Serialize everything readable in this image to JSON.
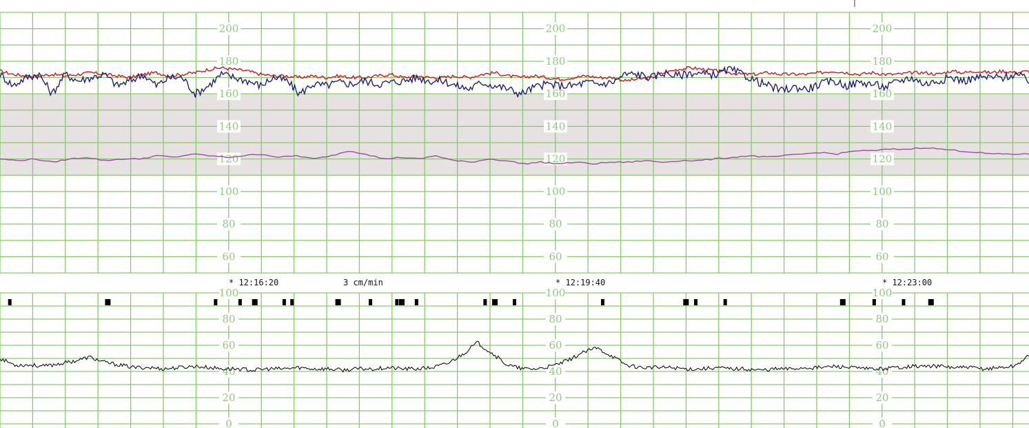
{
  "palette": {
    "grid": "#86c96a",
    "band": "#e6e2e1",
    "axis_label": "#8cc97a",
    "fhr_blue": "#1e1e78",
    "fhr_red": "#d21414",
    "maternal_purple": "#a04aa8",
    "uterine_black": "#111111"
  },
  "chart_data": [
    {
      "name_key": "fhr_panel",
      "type": "line",
      "title": "",
      "ylim": [
        50,
        210
      ],
      "y_ticks": [
        60,
        80,
        100,
        120,
        140,
        160,
        180,
        200
      ],
      "normal_band": [
        110,
        160
      ],
      "grid": true,
      "duration_min": 10.5,
      "series": [
        {
          "color_key": "fhr_red",
          "values": [
            174,
            172,
            171,
            171,
            172,
            171,
            172,
            173,
            172,
            171,
            170,
            172,
            173,
            171,
            172,
            173,
            175,
            176,
            175,
            174,
            172,
            171,
            171,
            170,
            171,
            170,
            171,
            170,
            170,
            171,
            172,
            170,
            171,
            170,
            170,
            171,
            170,
            172,
            173,
            171,
            170,
            171,
            170,
            169,
            170,
            171,
            170,
            170,
            168,
            169,
            170,
            173,
            175,
            176,
            175,
            174,
            173,
            172,
            172,
            173,
            172,
            172,
            172,
            173,
            174,
            173,
            172,
            173,
            172,
            172,
            173,
            173,
            172,
            174,
            173,
            174,
            173,
            174,
            173,
            174
          ]
        },
        {
          "color_key": "fhr_blue",
          "values": [
            172,
            165,
            170,
            172,
            160,
            172,
            168,
            170,
            172,
            165,
            168,
            172,
            165,
            170,
            170,
            160,
            165,
            172,
            170,
            168,
            165,
            170,
            168,
            160,
            166,
            165,
            167,
            166,
            168,
            166,
            167,
            168,
            170,
            168,
            168,
            165,
            163,
            167,
            165,
            163,
            160,
            164,
            166,
            165,
            165,
            167,
            166,
            167,
            172,
            172,
            170,
            173,
            171,
            173,
            172,
            172,
            175,
            172,
            168,
            165,
            162,
            164,
            163,
            166,
            168,
            165,
            167,
            166,
            164,
            168,
            170,
            166,
            168,
            170,
            168,
            170,
            170,
            170,
            172,
            168
          ]
        },
        {
          "color_key": "maternal_purple",
          "values": [
            120,
            119,
            120,
            118,
            120,
            121,
            119,
            120,
            120,
            122,
            121,
            123,
            122,
            121,
            122,
            123,
            121,
            122,
            120,
            122,
            125,
            123,
            120,
            121,
            120,
            122,
            119,
            118,
            120,
            119,
            117,
            118,
            117,
            118,
            117,
            118,
            118,
            119,
            118,
            119,
            119,
            120,
            121,
            122,
            121,
            122,
            123,
            124,
            123,
            125,
            125,
            126,
            126,
            127,
            126,
            125,
            124,
            123,
            123,
            123
          ]
        }
      ]
    },
    {
      "name_key": "uc_panel",
      "type": "line",
      "title": "",
      "ylim": [
        0,
        100
      ],
      "y_ticks": [
        0,
        20,
        40,
        60,
        80,
        100
      ],
      "grid": true,
      "duration_min": 10.5,
      "series": [
        {
          "color_key": "uterine_black",
          "values": [
            50,
            45,
            45,
            44,
            46,
            48,
            51,
            47,
            45,
            43,
            43,
            42,
            43,
            44,
            43,
            42,
            42,
            41,
            42,
            42,
            43,
            42,
            42,
            41,
            42,
            42,
            43,
            42,
            42,
            43,
            46,
            53,
            62,
            54,
            45,
            42,
            42,
            44,
            48,
            54,
            58,
            52,
            45,
            43,
            43,
            43,
            42,
            42,
            43,
            42,
            42,
            41,
            42,
            42,
            43,
            43,
            44,
            43,
            42,
            42,
            43,
            44,
            44,
            44,
            43,
            43,
            42,
            43,
            44,
            52
          ]
        }
      ],
      "event_marks_min": [
        0.1,
        1.1,
        2.2,
        2.45,
        2.6,
        2.9,
        2.98,
        3.45,
        3.78,
        4.05,
        4.1,
        4.25,
        4.95,
        5.05,
        5.25,
        6.15,
        7.0,
        7.1,
        7.4,
        8.6,
        8.92,
        9.22,
        9.5
      ]
    }
  ],
  "annotations": {
    "time_1": "* 12:16:20",
    "speed": "3 cm/min",
    "time_2": "* 12:19:40",
    "time_3": "* 12:23:00"
  }
}
